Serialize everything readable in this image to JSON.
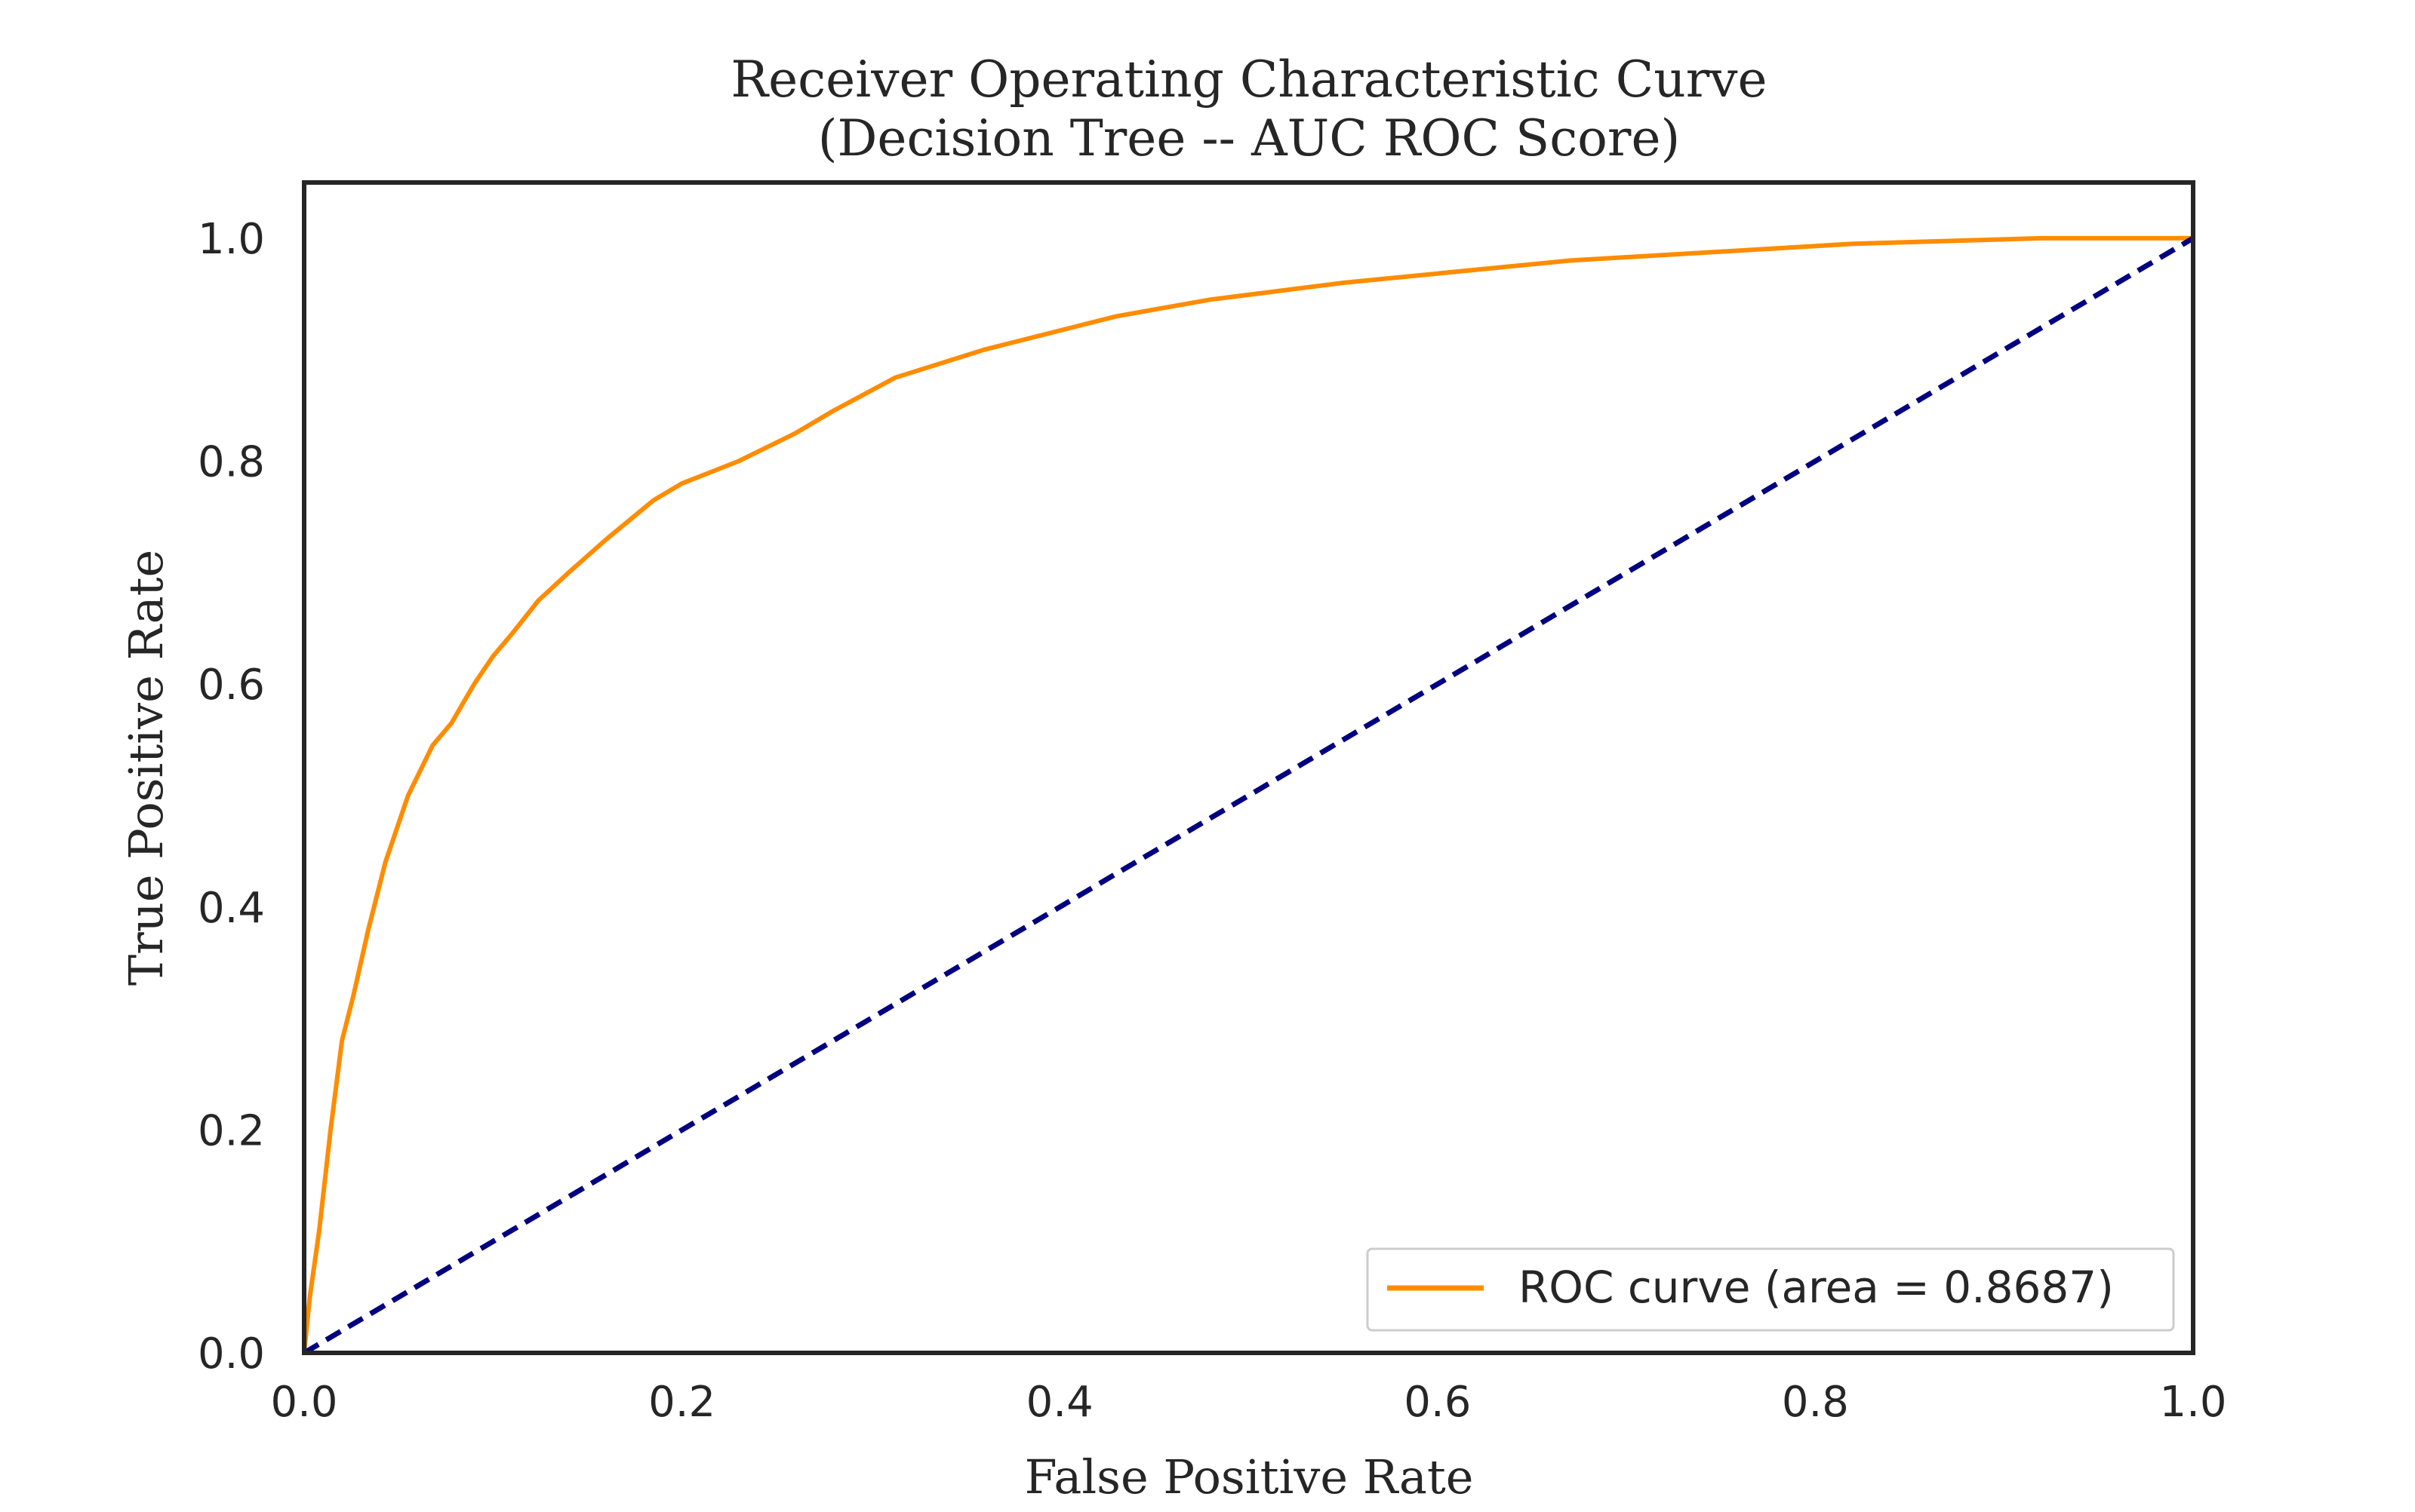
{
  "chart_data": {
    "type": "line",
    "title": "Receiver Operating Characteristic Curve",
    "subtitle": "(Decision Tree -- AUC ROC Score)",
    "xlabel": "False Positive Rate",
    "ylabel": "True Positive Rate",
    "xlim": [
      0.0,
      1.0
    ],
    "ylim": [
      0.0,
      1.05
    ],
    "x_ticks": [
      "0.0",
      "0.2",
      "0.4",
      "0.6",
      "0.8",
      "1.0"
    ],
    "y_ticks": [
      "0.0",
      "0.2",
      "0.4",
      "0.6",
      "0.8",
      "1.0"
    ],
    "grid": false,
    "legend_position": "lower-right",
    "series": [
      {
        "name": "ROC curve (area = 0.8687)",
        "color": "#ff8c00",
        "style": "solid",
        "x": [
          0.0,
          0.003,
          0.008,
          0.014,
          0.02,
          0.026,
          0.034,
          0.043,
          0.055,
          0.068,
          0.078,
          0.09,
          0.1,
          0.11,
          0.124,
          0.14,
          0.16,
          0.185,
          0.2,
          0.23,
          0.26,
          0.28,
          0.313,
          0.36,
          0.43,
          0.48,
          0.55,
          0.67,
          0.82,
          0.92,
          1.0
        ],
        "y": [
          0.0,
          0.05,
          0.11,
          0.2,
          0.28,
          0.32,
          0.38,
          0.44,
          0.5,
          0.545,
          0.565,
          0.6,
          0.625,
          0.645,
          0.675,
          0.7,
          0.73,
          0.765,
          0.78,
          0.8,
          0.825,
          0.845,
          0.875,
          0.9,
          0.93,
          0.945,
          0.96,
          0.98,
          0.995,
          1.0,
          1.0
        ]
      },
      {
        "color": "#000080",
        "style": "dashed",
        "x": [
          0.0,
          1.0
        ],
        "y": [
          0.0,
          1.0
        ]
      }
    ]
  }
}
